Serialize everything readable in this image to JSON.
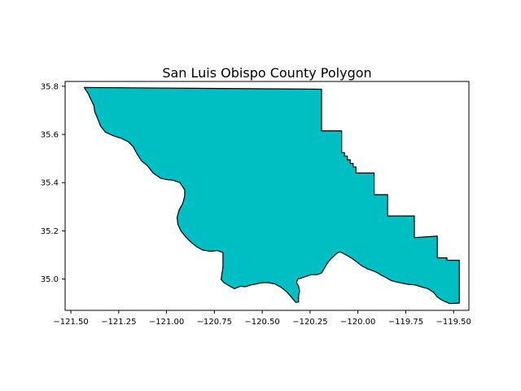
{
  "title": "San Luis Obispo County Polygon",
  "colors": {
    "fill": "#00bfc4",
    "stroke": "#000000",
    "axes": "#000000"
  },
  "chart_data": {
    "type": "map-polygon",
    "title": "San Luis Obispo County Polygon",
    "xlim": [
      -121.53,
      -119.42
    ],
    "ylim": [
      34.87,
      35.82
    ],
    "x_ticks": [
      {
        "value": -121.5,
        "label": "−121.50"
      },
      {
        "value": -121.25,
        "label": "−121.25"
      },
      {
        "value": -121.0,
        "label": "−121.00"
      },
      {
        "value": -120.75,
        "label": "−120.75"
      },
      {
        "value": -120.5,
        "label": "−120.50"
      },
      {
        "value": -120.25,
        "label": "−120.25"
      },
      {
        "value": -120.0,
        "label": "−120.00"
      },
      {
        "value": -119.75,
        "label": "−119.75"
      },
      {
        "value": -119.5,
        "label": "−119.50"
      }
    ],
    "y_ticks": [
      {
        "value": 35.0,
        "label": "35.0"
      },
      {
        "value": 35.2,
        "label": "35.2"
      },
      {
        "value": 35.4,
        "label": "35.4"
      },
      {
        "value": 35.6,
        "label": "35.6"
      },
      {
        "value": 35.8,
        "label": "35.8"
      }
    ],
    "polygon": [
      [
        -121.43,
        35.795
      ],
      [
        -120.19,
        35.788
      ],
      [
        -120.19,
        35.615
      ],
      [
        -120.085,
        35.615
      ],
      [
        -120.085,
        35.525
      ],
      [
        -120.07,
        35.525
      ],
      [
        -120.07,
        35.51
      ],
      [
        -120.055,
        35.51
      ],
      [
        -120.055,
        35.495
      ],
      [
        -120.04,
        35.495
      ],
      [
        -120.04,
        35.48
      ],
      [
        -120.025,
        35.48
      ],
      [
        -120.025,
        35.465
      ],
      [
        -120.01,
        35.465
      ],
      [
        -120.01,
        35.44
      ],
      [
        -119.915,
        35.44
      ],
      [
        -119.915,
        35.35
      ],
      [
        -119.845,
        35.35
      ],
      [
        -119.845,
        35.262
      ],
      [
        -119.705,
        35.262
      ],
      [
        -119.705,
        35.172
      ],
      [
        -119.585,
        35.178
      ],
      [
        -119.585,
        35.088
      ],
      [
        -119.535,
        35.088
      ],
      [
        -119.535,
        35.078
      ],
      [
        -119.47,
        35.078
      ],
      [
        -119.47,
        34.9
      ],
      [
        -119.52,
        34.898
      ],
      [
        -119.555,
        34.91
      ],
      [
        -119.585,
        34.925
      ],
      [
        -119.605,
        34.945
      ],
      [
        -119.635,
        34.96
      ],
      [
        -119.67,
        34.968
      ],
      [
        -119.7,
        34.975
      ],
      [
        -119.735,
        34.978
      ],
      [
        -119.77,
        34.983
      ],
      [
        -119.8,
        34.988
      ],
      [
        -119.825,
        34.993
      ],
      [
        -119.85,
        35.005
      ],
      [
        -119.875,
        35.015
      ],
      [
        -119.9,
        35.027
      ],
      [
        -119.925,
        35.035
      ],
      [
        -119.95,
        35.042
      ],
      [
        -119.98,
        35.055
      ],
      [
        -120.005,
        35.07
      ],
      [
        -120.03,
        35.085
      ],
      [
        -120.055,
        35.097
      ],
      [
        -120.085,
        35.11
      ],
      [
        -120.1,
        35.112
      ],
      [
        -120.12,
        35.1
      ],
      [
        -120.14,
        35.085
      ],
      [
        -120.16,
        35.065
      ],
      [
        -120.175,
        35.045
      ],
      [
        -120.19,
        35.025
      ],
      [
        -120.215,
        35.018
      ],
      [
        -120.245,
        35.018
      ],
      [
        -120.275,
        35.01
      ],
      [
        -120.3,
        35.003
      ],
      [
        -120.315,
        35.0
      ],
      [
        -120.32,
        34.985
      ],
      [
        -120.31,
        34.97
      ],
      [
        -120.305,
        34.95
      ],
      [
        -120.31,
        34.93
      ],
      [
        -120.31,
        34.905
      ],
      [
        -120.325,
        34.903
      ],
      [
        -120.345,
        34.922
      ],
      [
        -120.37,
        34.945
      ],
      [
        -120.4,
        34.965
      ],
      [
        -120.435,
        34.98
      ],
      [
        -120.47,
        34.985
      ],
      [
        -120.5,
        34.985
      ],
      [
        -120.53,
        34.98
      ],
      [
        -120.56,
        34.975
      ],
      [
        -120.59,
        34.968
      ],
      [
        -120.615,
        34.97
      ],
      [
        -120.645,
        34.96
      ],
      [
        -120.67,
        34.97
      ],
      [
        -120.7,
        34.985
      ],
      [
        -120.715,
        34.998
      ],
      [
        -120.705,
        35.05
      ],
      [
        -120.705,
        35.11
      ],
      [
        -120.735,
        35.118
      ],
      [
        -120.77,
        35.115
      ],
      [
        -120.81,
        35.12
      ],
      [
        -120.845,
        35.135
      ],
      [
        -120.875,
        35.155
      ],
      [
        -120.9,
        35.175
      ],
      [
        -120.925,
        35.2
      ],
      [
        -120.94,
        35.225
      ],
      [
        -120.945,
        35.255
      ],
      [
        -120.935,
        35.285
      ],
      [
        -120.915,
        35.315
      ],
      [
        -120.905,
        35.345
      ],
      [
        -120.905,
        35.37
      ],
      [
        -120.93,
        35.4
      ],
      [
        -120.965,
        35.41
      ],
      [
        -121.0,
        35.413
      ],
      [
        -121.03,
        35.418
      ],
      [
        -121.07,
        35.44
      ],
      [
        -121.1,
        35.47
      ],
      [
        -121.13,
        35.49
      ],
      [
        -121.155,
        35.52
      ],
      [
        -121.175,
        35.55
      ],
      [
        -121.2,
        35.57
      ],
      [
        -121.24,
        35.585
      ],
      [
        -121.28,
        35.595
      ],
      [
        -121.32,
        35.61
      ],
      [
        -121.345,
        35.635
      ],
      [
        -121.36,
        35.665
      ],
      [
        -121.375,
        35.695
      ],
      [
        -121.38,
        35.72
      ],
      [
        -121.395,
        35.745
      ],
      [
        -121.41,
        35.77
      ],
      [
        -121.43,
        35.795
      ]
    ]
  }
}
